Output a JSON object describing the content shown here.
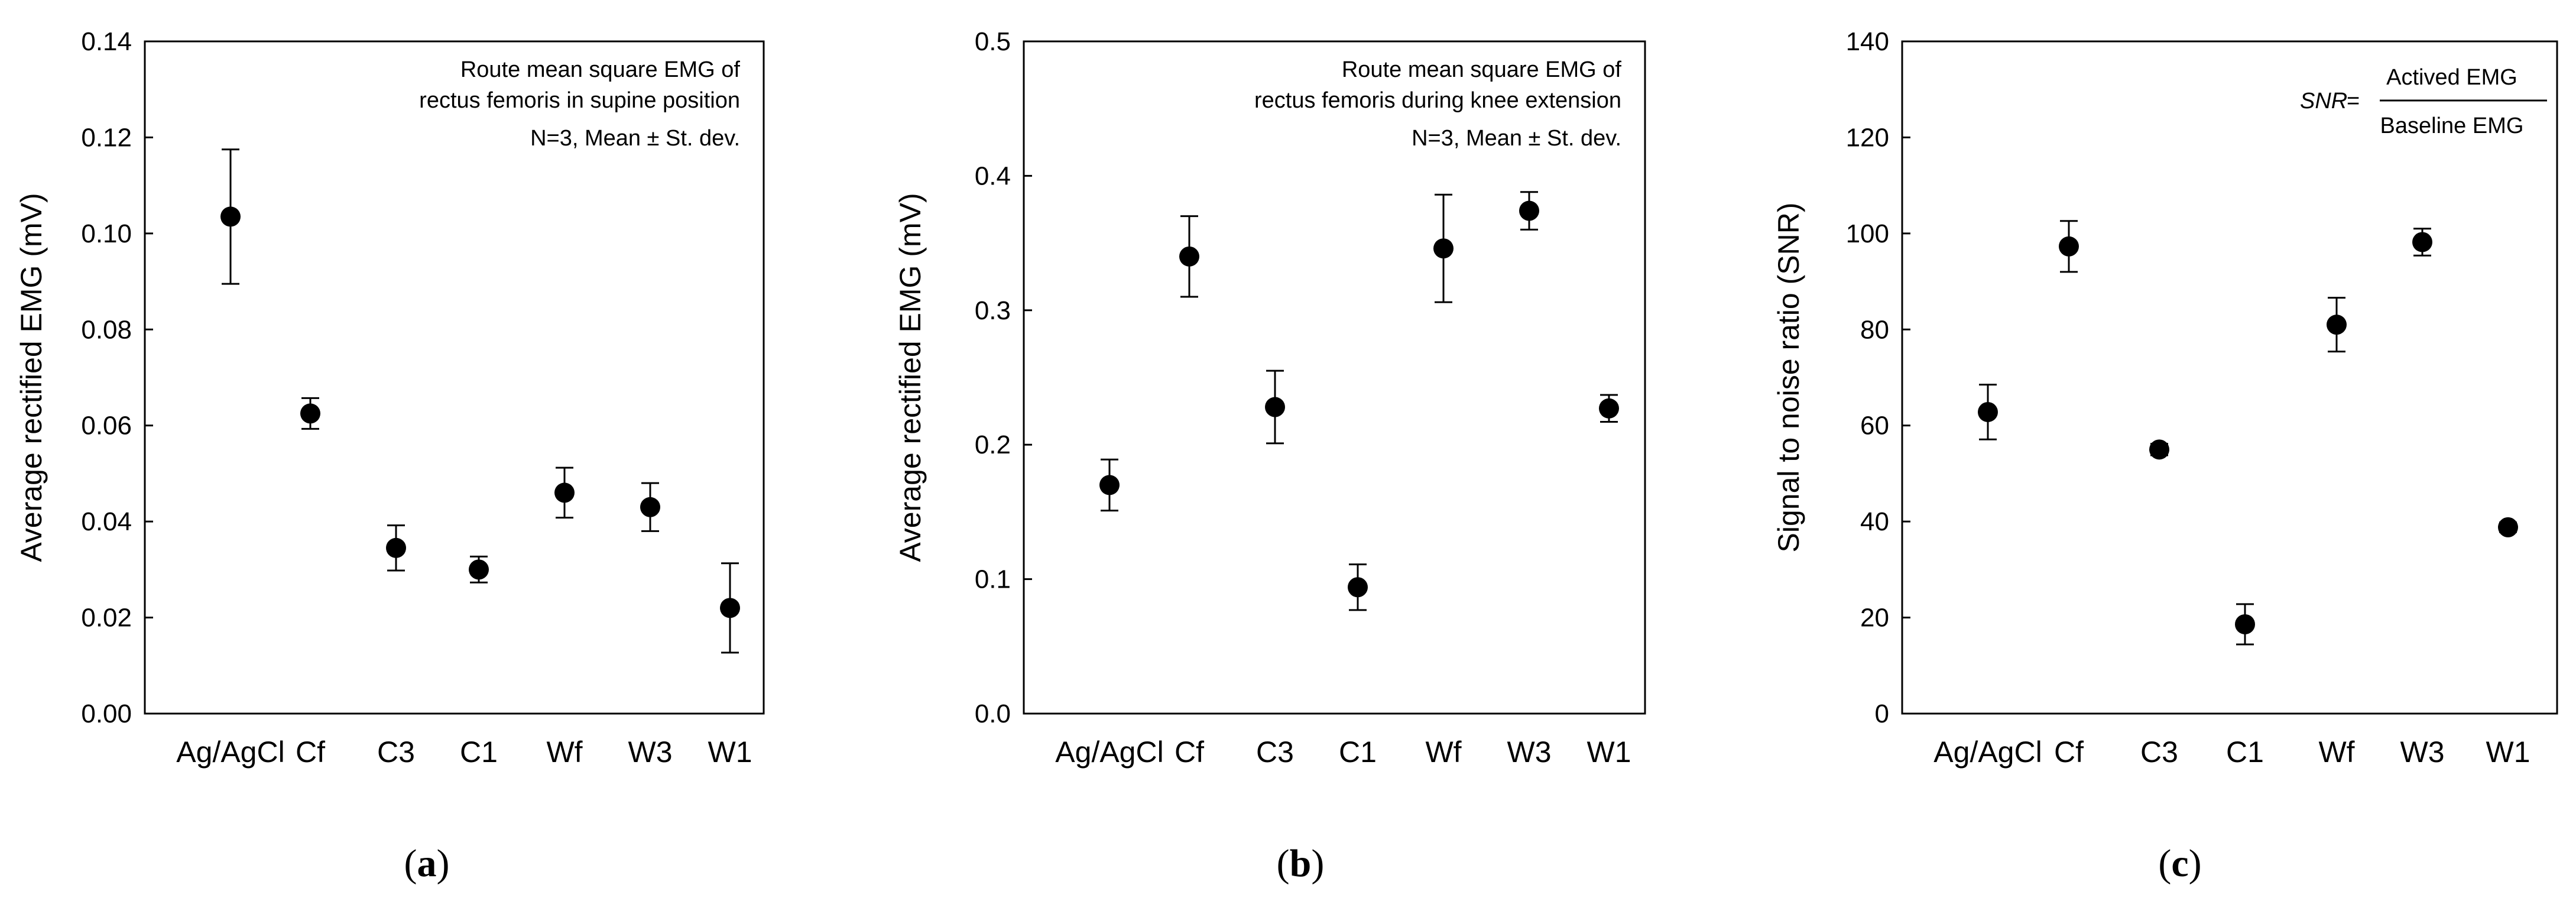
{
  "chart_data": [
    {
      "type": "scatter",
      "panel": "(a)",
      "panel_letter": "a",
      "ylabel": "Average rectified EMG (mV)",
      "xlabel": "",
      "categories": [
        "Ag/AgCl",
        "Cf",
        "C3",
        "C1",
        "Wf",
        "W3",
        "W1"
      ],
      "values": [
        0.1035,
        0.0625,
        0.0345,
        0.03,
        0.046,
        0.043,
        0.022
      ],
      "errors": [
        0.014,
        0.0032,
        0.0047,
        0.0027,
        0.0052,
        0.005,
        0.0093
      ],
      "ylim": [
        0,
        0.14
      ],
      "yticks": [
        "0.00",
        "0.02",
        "0.04",
        "0.06",
        "0.08",
        "0.10",
        "0.12",
        "0.14"
      ],
      "annotations": [
        "Route mean square EMG of",
        "rectus femoris in supine position",
        "N=3, Mean  ±  St. dev."
      ]
    },
    {
      "type": "scatter",
      "panel": "(b)",
      "panel_letter": "b",
      "ylabel": "Average rectified EMG (mV)",
      "xlabel": "",
      "categories": [
        "Ag/AgCl",
        "Cf",
        "C3",
        "C1",
        "Wf",
        "W3",
        "W1"
      ],
      "values": [
        0.17,
        0.34,
        0.228,
        0.094,
        0.346,
        0.374,
        0.227
      ],
      "errors": [
        0.019,
        0.03,
        0.027,
        0.017,
        0.04,
        0.014,
        0.01
      ],
      "ylim": [
        0,
        0.5
      ],
      "yticks": [
        "0.0",
        "0.1",
        "0.2",
        "0.3",
        "0.4",
        "0.5"
      ],
      "annotations": [
        "Route mean square EMG of",
        "rectus femoris during knee extension",
        "N=3, Mean  ±  St. dev."
      ]
    },
    {
      "type": "scatter",
      "panel": "(c)",
      "panel_letter": "c",
      "ylabel": "Signal to noise ratio (SNR)",
      "xlabel": "",
      "categories": [
        "Ag/AgCl",
        "Cf",
        "C3",
        "C1",
        "Wf",
        "W3",
        "W1"
      ],
      "values": [
        62.8,
        97.3,
        55.0,
        18.6,
        81.0,
        98.2,
        38.8
      ],
      "errors": [
        5.7,
        5.3,
        1.2,
        4.2,
        5.6,
        2.8,
        1.0
      ],
      "ylim": [
        0,
        140
      ],
      "yticks": [
        "0",
        "20",
        "40",
        "60",
        "80",
        "100",
        "120",
        "140"
      ],
      "formula": {
        "lhs": "SNR",
        "eq": "=",
        "numerator": "Actived EMG",
        "denominator": "Baseline EMG"
      }
    }
  ],
  "colors": {
    "marker": "#000000",
    "axis": "#000000",
    "background": "#ffffff"
  }
}
